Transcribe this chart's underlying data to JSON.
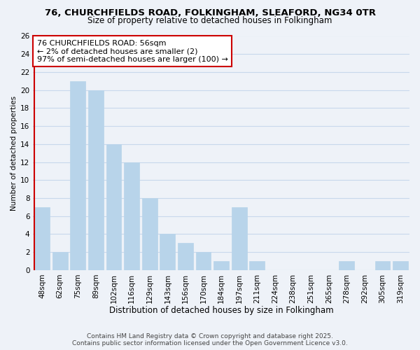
{
  "title": "76, CHURCHFIELDS ROAD, FOLKINGHAM, SLEAFORD, NG34 0TR",
  "subtitle": "Size of property relative to detached houses in Folkingham",
  "xlabel": "Distribution of detached houses by size in Folkingham",
  "ylabel": "Number of detached properties",
  "bar_color": "#b8d4ea",
  "bar_edge_color": "#b8d4ea",
  "grid_color": "#c8d8ec",
  "background_color": "#eef2f8",
  "categories": [
    "48sqm",
    "62sqm",
    "75sqm",
    "89sqm",
    "102sqm",
    "116sqm",
    "129sqm",
    "143sqm",
    "156sqm",
    "170sqm",
    "184sqm",
    "197sqm",
    "211sqm",
    "224sqm",
    "238sqm",
    "251sqm",
    "265sqm",
    "278sqm",
    "292sqm",
    "305sqm",
    "319sqm"
  ],
  "values": [
    7,
    2,
    21,
    20,
    14,
    12,
    8,
    4,
    3,
    2,
    1,
    7,
    1,
    0,
    0,
    0,
    0,
    1,
    0,
    1,
    1
  ],
  "ylim": [
    0,
    26
  ],
  "yticks": [
    0,
    2,
    4,
    6,
    8,
    10,
    12,
    14,
    16,
    18,
    20,
    22,
    24,
    26
  ],
  "property_line_color": "#cc0000",
  "annotation_box_title": "76 CHURCHFIELDS ROAD: 56sqm",
  "annotation_line1": "← 2% of detached houses are smaller (2)",
  "annotation_line2": "97% of semi-detached houses are larger (100) →",
  "annotation_box_edge_color": "#cc0000",
  "footer_line1": "Contains HM Land Registry data © Crown copyright and database right 2025.",
  "footer_line2": "Contains public sector information licensed under the Open Government Licence v3.0.",
  "title_fontsize": 9.5,
  "subtitle_fontsize": 8.5,
  "tick_fontsize": 7.5,
  "xlabel_fontsize": 8.5,
  "ylabel_fontsize": 7.5,
  "annotation_fontsize": 8,
  "footer_fontsize": 6.5
}
